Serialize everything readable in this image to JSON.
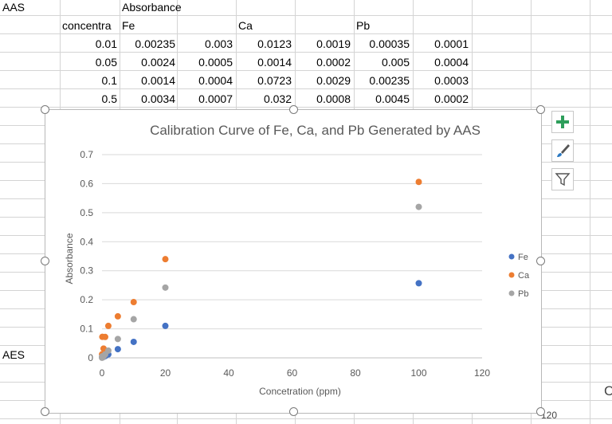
{
  "sheet": {
    "labels": {
      "aas": "AAS",
      "absorbance": "Absorbance",
      "aes": "AES",
      "partial_c": "C",
      "partial_120": "120"
    },
    "header_row": [
      "concentra",
      "Fe",
      "",
      "Ca",
      "",
      "Pb",
      ""
    ],
    "rows": [
      [
        "0.01",
        "0.00235",
        "0.003",
        "0.0123",
        "0.0019",
        "0.00035",
        "0.0001"
      ],
      [
        "0.05",
        "0.0024",
        "0.0005",
        "0.0014",
        "0.0002",
        "0.005",
        "0.0004"
      ],
      [
        "0.1",
        "0.0014",
        "0.0004",
        "0.0723",
        "0.0029",
        "0.00235",
        "0.0003"
      ],
      [
        "0.5",
        "0.0034",
        "0.0007",
        "0.032",
        "0.0008",
        "0.0045",
        "0.0002"
      ]
    ]
  },
  "chart_tools": {
    "add_icon": "plus-icon",
    "style_icon": "brush-icon",
    "filter_icon": "filter-icon"
  },
  "chart_data": {
    "type": "scatter",
    "title": "Calibration Curve of Fe, Ca, and Pb Generated by AAS",
    "xlabel": "Concetration (ppm)",
    "ylabel": "Absorbance",
    "xlim": [
      0,
      120
    ],
    "ylim": [
      0,
      0.7
    ],
    "x_ticks": [
      "0",
      "20",
      "40",
      "60",
      "80",
      "100",
      "120"
    ],
    "y_ticks": [
      "0",
      "0.1",
      "0.2",
      "0.3",
      "0.4",
      "0.5",
      "0.6",
      "0.7"
    ],
    "grid": true,
    "legend": "right",
    "series": [
      {
        "name": "Fe",
        "color": "#4472C4",
        "x": [
          0.01,
          0.05,
          0.1,
          0.5,
          1,
          2,
          5,
          10,
          20,
          100
        ],
        "y": [
          0.00235,
          0.0024,
          0.0014,
          0.0034,
          0.006,
          0.012,
          0.03,
          0.055,
          0.11,
          0.257
        ]
      },
      {
        "name": "Ca",
        "color": "#ED7D31",
        "x": [
          0.01,
          0.05,
          0.1,
          0.5,
          1,
          2,
          5,
          10,
          20,
          100
        ],
        "y": [
          0.0123,
          0.0014,
          0.0723,
          0.032,
          0.072,
          0.11,
          0.143,
          0.192,
          0.34,
          0.606
        ]
      },
      {
        "name": "Pb",
        "color": "#A5A5A5",
        "x": [
          0.01,
          0.05,
          0.1,
          0.5,
          1,
          2,
          5,
          10,
          20,
          100
        ],
        "y": [
          0.00035,
          0.005,
          0.00235,
          0.0045,
          0.012,
          0.025,
          0.065,
          0.133,
          0.242,
          0.52
        ]
      }
    ]
  }
}
